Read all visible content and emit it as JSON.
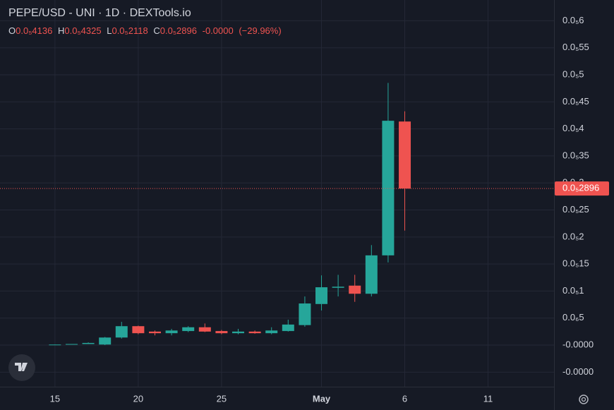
{
  "chart_data": {
    "type": "candlestick",
    "title": "PEPE/USD - UNI · 1D · DEXTools.io",
    "legend": {
      "o_label": "O",
      "o": "0.0₅4136",
      "h_label": "H",
      "h": "0.0₅4325",
      "l_label": "L",
      "l": "0.0₅2118",
      "c_label": "C",
      "c": "0.0₅2896",
      "change": "-0.0000",
      "change_pct": "(−29.96%)"
    },
    "last_price_label": "0.0₅2896",
    "up_color": "#26a69a",
    "down_color": "#ef5350",
    "x": [
      0,
      1,
      2,
      3,
      4,
      5,
      6,
      7,
      8,
      9,
      10,
      11,
      12,
      13,
      14,
      15,
      16,
      17,
      18,
      19,
      20,
      21
    ],
    "open": [
      5e-09,
      1e-08,
      2e-08,
      1e-08,
      1.4e-07,
      3.5e-07,
      2.5e-07,
      2.2e-07,
      2.6e-07,
      3.3e-07,
      2.6e-07,
      2.2e-07,
      2.5e-07,
      2.2e-07,
      2.6e-07,
      3.7e-07,
      7.6e-07,
      1.06e-06,
      1.1e-06,
      9.5e-07,
      1.66e-06,
      4.136e-06
    ],
    "high": [
      1e-08,
      2e-08,
      5e-08,
      1.5e-07,
      4.3e-07,
      3.6e-07,
      2.7e-07,
      3e-07,
      3.5e-07,
      4e-07,
      2.8e-07,
      3e-07,
      2.7e-07,
      3.3e-07,
      4.7e-07,
      9e-07,
      1.29e-06,
      1.3e-06,
      1.3e-06,
      1.85e-06,
      4.85e-06,
      4.325e-06
    ],
    "low": [
      0.0,
      1e-08,
      2e-08,
      0.0,
      1.2e-07,
      2e-07,
      1.8e-07,
      1.8e-07,
      2.4e-07,
      2.4e-07,
      2e-07,
      2e-07,
      2.1e-07,
      2e-07,
      2.5e-07,
      3.4e-07,
      6.4e-07,
      9e-07,
      8e-07,
      9e-07,
      1.53e-06,
      2.118e-06
    ],
    "close": [
      1e-08,
      2e-08,
      4e-08,
      1.4e-07,
      3.5e-07,
      2.2e-07,
      2.2e-07,
      2.7e-07,
      3.3e-07,
      2.5e-07,
      2.2e-07,
      2.5e-07,
      2.2e-07,
      2.7e-07,
      3.8e-07,
      7.7e-07,
      1.07e-06,
      1.08e-06,
      9.5e-07,
      1.66e-06,
      4.15e-06,
      2.896e-06
    ],
    "xlim": [
      -3.3,
      29.96
    ],
    "xticks": [
      {
        "value": 0,
        "label": "15"
      },
      {
        "value": 5,
        "label": "20"
      },
      {
        "value": 10,
        "label": "25"
      },
      {
        "value": 16,
        "label": "May"
      },
      {
        "value": 21,
        "label": "6"
      },
      {
        "value": 26,
        "label": "11"
      }
    ],
    "ylim": [
      -7.7e-07,
      6.384e-06
    ],
    "yticks": [
      {
        "value": 6e-06,
        "label": "0.0₅6"
      },
      {
        "value": 5.5e-06,
        "label": "0.0₅55"
      },
      {
        "value": 5e-06,
        "label": "0.0₅5"
      },
      {
        "value": 4.5e-06,
        "label": "0.0₅45"
      },
      {
        "value": 4e-06,
        "label": "0.0₅4"
      },
      {
        "value": 3.5e-06,
        "label": "0.0₅35"
      },
      {
        "value": 3e-06,
        "label": "0.0₅3"
      },
      {
        "value": 2.5e-06,
        "label": "0.0₅25"
      },
      {
        "value": 2e-06,
        "label": "0.0₅2"
      },
      {
        "value": 1.5e-06,
        "label": "0.0₅15"
      },
      {
        "value": 1e-06,
        "label": "0.0₅1"
      },
      {
        "value": 5e-07,
        "label": "0.0₆5"
      },
      {
        "value": 0,
        "label": "-0.0000"
      },
      {
        "value": -5e-07,
        "label": "-0.0000"
      }
    ],
    "grid": true
  }
}
